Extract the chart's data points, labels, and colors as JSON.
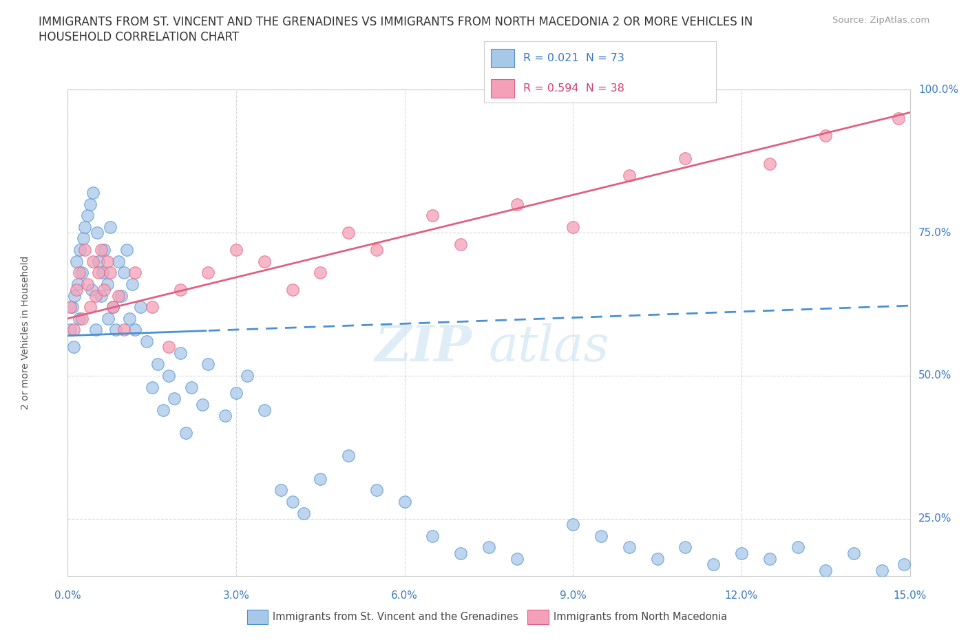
{
  "title_line1": "IMMIGRANTS FROM ST. VINCENT AND THE GRENADINES VS IMMIGRANTS FROM NORTH MACEDONIA 2 OR MORE VEHICLES IN",
  "title_line2": "HOUSEHOLD CORRELATION CHART",
  "source": "Source: ZipAtlas.com",
  "ylabel_label": "2 or more Vehicles in Household",
  "xmin": 0.0,
  "xmax": 15.0,
  "ymin": 15.0,
  "ymax": 100.0,
  "legend_label1": "Immigrants from St. Vincent and the Grenadines",
  "legend_label2": "Immigrants from North Macedonia",
  "r1": 0.021,
  "n1": 73,
  "r2": 0.594,
  "n2": 38,
  "color_blue": "#a8c8e8",
  "color_pink": "#f4a0b8",
  "color_blue_line": "#4a90d4",
  "color_pink_line": "#e06080",
  "color_blue_text": "#3a7abf",
  "color_pink_text": "#d04070",
  "watermark_zip": "ZIP",
  "watermark_atlas": "atlas",
  "ytick_values": [
    25.0,
    50.0,
    75.0,
    100.0
  ],
  "xtick_values": [
    0,
    3,
    6,
    9,
    12,
    15
  ],
  "grid_color": "#c8c8c8",
  "bg_color": "#ffffff",
  "blue_x": [
    0.05,
    0.08,
    0.1,
    0.12,
    0.15,
    0.18,
    0.2,
    0.22,
    0.25,
    0.28,
    0.3,
    0.35,
    0.4,
    0.42,
    0.45,
    0.5,
    0.52,
    0.55,
    0.6,
    0.62,
    0.65,
    0.7,
    0.72,
    0.75,
    0.8,
    0.85,
    0.9,
    0.95,
    1.0,
    1.05,
    1.1,
    1.15,
    1.2,
    1.3,
    1.4,
    1.5,
    1.6,
    1.7,
    1.8,
    1.9,
    2.0,
    2.1,
    2.2,
    2.4,
    2.5,
    2.8,
    3.0,
    3.2,
    3.5,
    3.8,
    4.0,
    4.2,
    4.5,
    5.0,
    5.5,
    6.0,
    6.5,
    7.0,
    7.5,
    8.0,
    9.0,
    9.5,
    10.0,
    10.5,
    11.0,
    11.5,
    12.0,
    12.5,
    13.0,
    13.5,
    14.0,
    14.5,
    14.9
  ],
  "blue_y": [
    58.0,
    62.0,
    55.0,
    64.0,
    70.0,
    66.0,
    60.0,
    72.0,
    68.0,
    74.0,
    76.0,
    78.0,
    80.0,
    65.0,
    82.0,
    58.0,
    75.0,
    70.0,
    64.0,
    68.0,
    72.0,
    66.0,
    60.0,
    76.0,
    62.0,
    58.0,
    70.0,
    64.0,
    68.0,
    72.0,
    60.0,
    66.0,
    58.0,
    62.0,
    56.0,
    48.0,
    52.0,
    44.0,
    50.0,
    46.0,
    54.0,
    40.0,
    48.0,
    45.0,
    52.0,
    43.0,
    47.0,
    50.0,
    44.0,
    30.0,
    28.0,
    26.0,
    32.0,
    36.0,
    30.0,
    28.0,
    22.0,
    19.0,
    20.0,
    18.0,
    24.0,
    22.0,
    20.0,
    18.0,
    20.0,
    17.0,
    19.0,
    18.0,
    20.0,
    16.0,
    19.0,
    16.0,
    17.0
  ],
  "pink_x": [
    0.05,
    0.1,
    0.15,
    0.2,
    0.25,
    0.3,
    0.35,
    0.4,
    0.45,
    0.5,
    0.55,
    0.6,
    0.65,
    0.7,
    0.75,
    0.8,
    0.9,
    1.0,
    1.2,
    1.5,
    1.8,
    2.0,
    2.5,
    3.0,
    3.5,
    4.0,
    4.5,
    5.0,
    5.5,
    6.5,
    7.0,
    8.0,
    9.0,
    10.0,
    11.0,
    12.5,
    13.5,
    14.8
  ],
  "pink_y": [
    62.0,
    58.0,
    65.0,
    68.0,
    60.0,
    72.0,
    66.0,
    62.0,
    70.0,
    64.0,
    68.0,
    72.0,
    65.0,
    70.0,
    68.0,
    62.0,
    64.0,
    58.0,
    68.0,
    62.0,
    55.0,
    65.0,
    68.0,
    72.0,
    70.0,
    65.0,
    68.0,
    75.0,
    72.0,
    78.0,
    73.0,
    80.0,
    76.0,
    85.0,
    88.0,
    87.0,
    92.0,
    95.0
  ]
}
